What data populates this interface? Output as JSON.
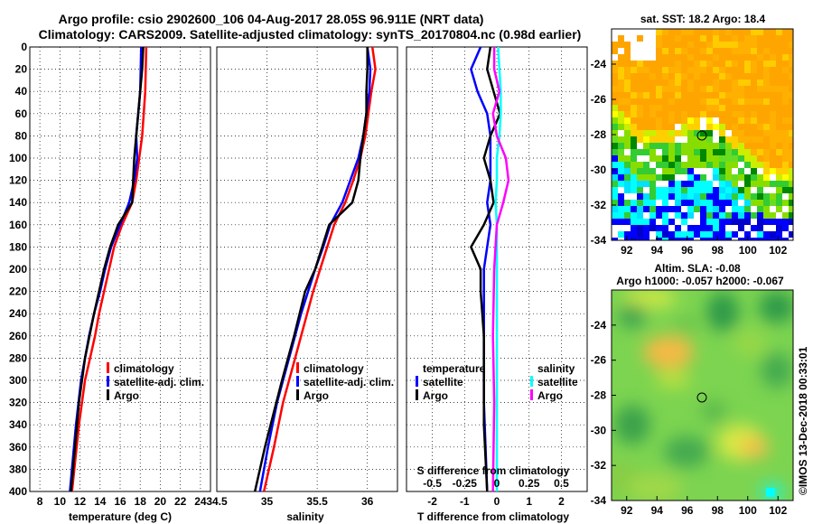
{
  "title_line1": "Argo profile: csio 2902600_106 04-Aug-2017 28.05S 96.911E (NRT data)",
  "title_line2": "Climatology: CARS2009. Satellite-adjusted climatology: synTS_20170804.nc (0.98d earlier)",
  "watermark": "©IMOS 13-Dec-2018 00:33:01",
  "colors": {
    "climatology": "#ff0000",
    "satellite": "#0000ff",
    "argo": "#000000",
    "sat_salinity": "#00ffff",
    "argo_salinity": "#ff00ff"
  },
  "chart_data": [
    {
      "type": "line",
      "id": "temperature",
      "xlabel": "temperature (deg C)",
      "ylabel": "",
      "xlim": [
        7,
        25
      ],
      "ylim": [
        400,
        0
      ],
      "xticks": [
        8,
        10,
        12,
        14,
        16,
        18,
        20,
        22,
        24
      ],
      "yticks": [
        0,
        20,
        40,
        60,
        80,
        100,
        120,
        140,
        160,
        180,
        200,
        220,
        240,
        260,
        280,
        300,
        320,
        340,
        360,
        380,
        400
      ],
      "legend": [
        "climatology",
        "satellite-adj. clim.",
        "Argo"
      ],
      "series": [
        {
          "name": "climatology",
          "color": "#ff0000",
          "depth": [
            0,
            40,
            80,
            100,
            120,
            140,
            160,
            180,
            200,
            220,
            240,
            260,
            280,
            300,
            340,
            400
          ],
          "values": [
            18.6,
            18.5,
            18.2,
            17.9,
            17.6,
            17.2,
            16.2,
            15.4,
            14.9,
            14.4,
            13.9,
            13.5,
            13.0,
            12.5,
            11.9,
            11.2
          ]
        },
        {
          "name": "satellite-adj. clim.",
          "color": "#0000ff",
          "depth": [
            0,
            40,
            80,
            100,
            120,
            140,
            160,
            180,
            200,
            220,
            240,
            260,
            280,
            300,
            340,
            400
          ],
          "values": [
            18.1,
            18.0,
            17.6,
            17.7,
            17.4,
            16.9,
            16.0,
            15.1,
            14.5,
            14.0,
            13.4,
            12.9,
            12.5,
            12.1,
            11.6,
            11.0
          ]
        },
        {
          "name": "Argo",
          "color": "#000000",
          "depth": [
            0,
            20,
            40,
            60,
            80,
            100,
            120,
            140,
            160,
            180,
            200,
            240,
            280,
            320,
            400
          ],
          "values": [
            18.3,
            18.2,
            18.0,
            17.8,
            17.6,
            17.4,
            17.3,
            17.2,
            15.8,
            15.0,
            14.4,
            13.4,
            12.5,
            11.9,
            11.1
          ]
        }
      ]
    },
    {
      "type": "line",
      "id": "salinity",
      "xlabel": "salinity",
      "xlim": [
        34.5,
        36.3
      ],
      "ylim": [
        400,
        0
      ],
      "xticks": [
        34.5,
        35,
        35.5,
        36
      ],
      "legend": [
        "climatology",
        "satellite-adj. clim.",
        "Argo"
      ],
      "series": [
        {
          "name": "climatology",
          "color": "#ff0000",
          "depth": [
            0,
            20,
            40,
            80,
            100,
            120,
            140,
            160,
            180,
            200,
            220,
            240,
            280,
            320,
            360,
            400
          ],
          "values": [
            36.05,
            36.08,
            36.04,
            35.98,
            35.93,
            35.86,
            35.78,
            35.67,
            35.6,
            35.53,
            35.46,
            35.4,
            35.28,
            35.16,
            35.07,
            34.97
          ]
        },
        {
          "name": "satellite-adj. clim.",
          "color": "#0000ff",
          "depth": [
            0,
            20,
            40,
            80,
            100,
            120,
            140,
            160,
            180,
            200,
            220,
            240,
            280,
            320,
            360,
            400
          ],
          "values": [
            36.0,
            36.03,
            36.02,
            35.96,
            35.91,
            35.83,
            35.75,
            35.63,
            35.56,
            35.48,
            35.41,
            35.34,
            35.22,
            35.1,
            35.01,
            34.93
          ]
        },
        {
          "name": "Argo",
          "color": "#000000",
          "depth": [
            0,
            20,
            40,
            60,
            80,
            100,
            120,
            140,
            160,
            180,
            200,
            220,
            260,
            300,
            360,
            400
          ],
          "values": [
            36.0,
            36.0,
            35.99,
            35.99,
            35.96,
            35.93,
            35.91,
            35.85,
            35.62,
            35.55,
            35.48,
            35.38,
            35.27,
            35.15,
            34.98,
            34.88
          ]
        }
      ]
    },
    {
      "type": "line",
      "id": "differences",
      "xlabel": "T difference from climatology",
      "xlabel_top": "S difference from climatology",
      "xlim": [
        -2.8,
        2.8
      ],
      "ylim": [
        400,
        0
      ],
      "xticks": [
        -2,
        -1,
        0,
        1,
        2
      ],
      "s_ticks": [
        "-0.5",
        "-0.25",
        "0",
        "0.25",
        "0.5"
      ],
      "legend_left_title": "temperature",
      "legend_right_title": "salinity",
      "legend_left": [
        "satellite",
        "Argo"
      ],
      "legend_right": [
        "satellite",
        "Argo"
      ],
      "series": [
        {
          "name": "T satellite",
          "color": "#0000ff",
          "depth": [
            0,
            20,
            40,
            60,
            80,
            100,
            120,
            140,
            160,
            200,
            260,
            320,
            400
          ],
          "values": [
            -0.5,
            -0.8,
            -0.6,
            -0.3,
            -0.2,
            -0.2,
            -0.2,
            -0.3,
            -0.2,
            -0.4,
            -0.4,
            -0.4,
            -0.3
          ]
        },
        {
          "name": "T Argo",
          "color": "#000000",
          "depth": [
            0,
            20,
            40,
            60,
            80,
            90,
            100,
            120,
            140,
            160,
            180,
            200,
            220,
            260,
            300,
            340,
            400
          ],
          "values": [
            -0.2,
            -0.3,
            -0.1,
            0.1,
            -0.2,
            -0.3,
            -0.4,
            -0.2,
            -0.1,
            -0.4,
            -0.8,
            -0.5,
            -0.5,
            -0.4,
            -0.4,
            -0.4,
            -0.3
          ]
        },
        {
          "name": "S satellite",
          "color": "#00ffff",
          "depth": [
            0,
            20,
            40,
            60,
            80,
            100,
            120,
            140,
            160,
            200,
            260,
            320,
            400
          ],
          "values": [
            0.01,
            0.02,
            0.03,
            0.03,
            0.02,
            0.0,
            0.0,
            -0.01,
            0.0,
            0.0,
            0.0,
            0.0,
            0.0
          ]
        },
        {
          "name": "S Argo",
          "color": "#ff00ff",
          "depth": [
            0,
            20,
            40,
            60,
            80,
            100,
            120,
            140,
            160,
            200,
            260,
            320,
            400
          ],
          "values": [
            -0.02,
            -0.02,
            0.02,
            -0.03,
            0.0,
            0.07,
            0.09,
            0.05,
            0.0,
            -0.02,
            -0.03,
            -0.02,
            -0.03
          ]
        }
      ]
    },
    {
      "type": "heatmap",
      "id": "sst_map",
      "title": "sat. SST: 18.2 Argo: 18.4",
      "xlim": [
        91,
        103
      ],
      "ylim": [
        -34,
        -22
      ],
      "xticks": [
        92,
        94,
        96,
        98,
        100,
        102
      ],
      "yticks": [
        -24,
        -26,
        -28,
        -30,
        -32,
        -34
      ]
    },
    {
      "type": "heatmap",
      "id": "sla_map",
      "title_line1": "Altim. SLA: -0.08",
      "title_line2": "Argo h1000: -0.057 h2000: -0.067",
      "xlim": [
        91,
        103
      ],
      "ylim": [
        -34,
        -22
      ],
      "xticks": [
        92,
        94,
        96,
        98,
        100,
        102
      ],
      "yticks": [
        -24,
        -26,
        -28,
        -30,
        -32,
        -34
      ]
    }
  ]
}
